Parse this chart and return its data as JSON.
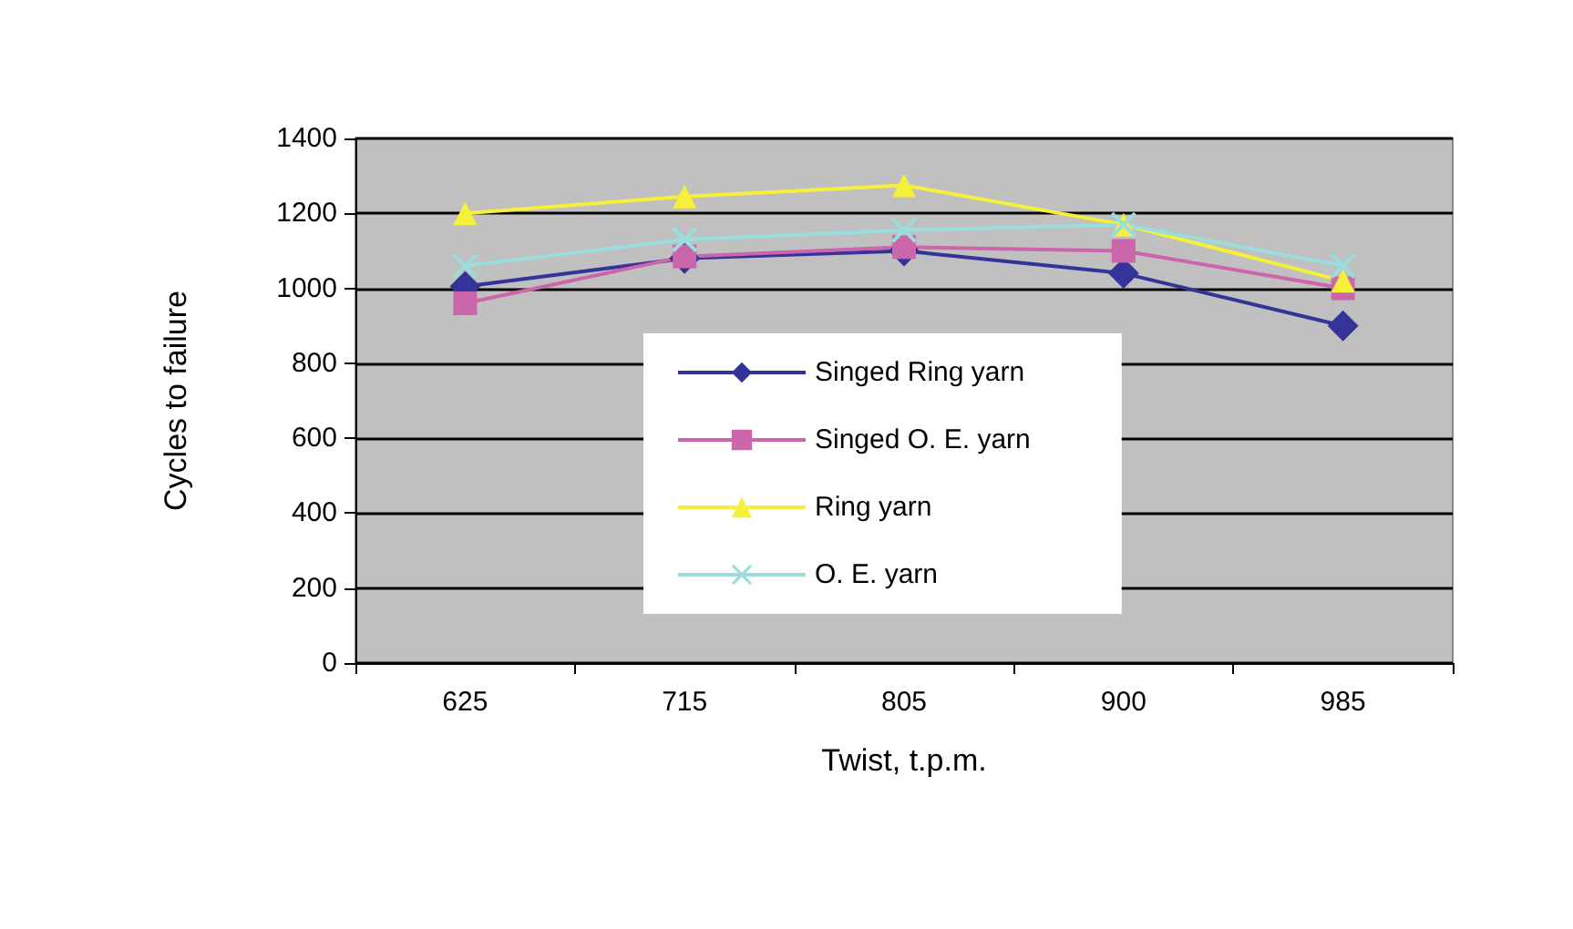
{
  "chart_data": {
    "type": "line",
    "xlabel": "Twist, t.p.m.",
    "ylabel": "Cycles to failure",
    "categories": [
      "625",
      "715",
      "805",
      "900",
      "985"
    ],
    "series": [
      {
        "name": "Singed Ring yarn",
        "color": "#333399",
        "marker": "diamond",
        "values": [
          1005,
          1080,
          1100,
          1040,
          900
        ]
      },
      {
        "name": "Singed O. E. yarn",
        "color": "#cc66aa",
        "marker": "square",
        "values": [
          960,
          1085,
          1110,
          1100,
          1000
        ]
      },
      {
        "name": "Ring yarn",
        "color": "#f5f03a",
        "marker": "triangle",
        "values": [
          1200,
          1245,
          1275,
          1170,
          1020
        ]
      },
      {
        "name": "O. E. yarn",
        "color": "#99dddd",
        "marker": "cross",
        "values": [
          1060,
          1130,
          1155,
          1170,
          1060
        ]
      }
    ],
    "ylim": [
      0,
      1400
    ],
    "yticks": [
      0,
      200,
      400,
      600,
      800,
      1000,
      1200,
      1400
    ],
    "grid": "y",
    "legend": "bottom"
  }
}
